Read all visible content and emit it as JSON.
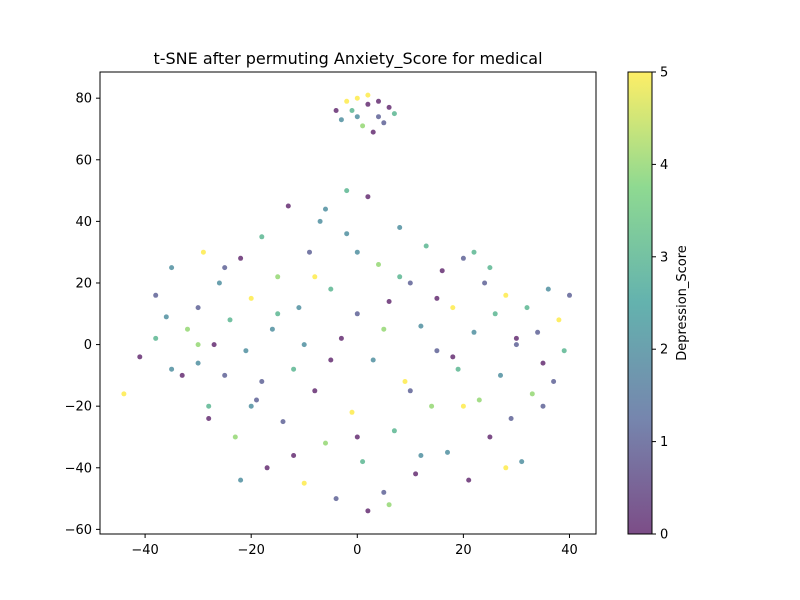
{
  "chart_data": {
    "type": "scatter",
    "title": "t-SNE after permuting Anxiety_Score for medical",
    "xlabel": "",
    "ylabel": "",
    "xlim": [
      -48.5,
      45
    ],
    "ylim": [
      -61.5,
      88.5
    ],
    "x_ticks": [
      -40,
      -20,
      0,
      20,
      40
    ],
    "y_ticks": [
      -60,
      -40,
      -20,
      0,
      20,
      40,
      60,
      80
    ],
    "grid": false,
    "colorbar": {
      "label": "Depression_Score",
      "colormap": "viridis",
      "range": [
        0,
        5
      ],
      "ticks": [
        0,
        1,
        2,
        3,
        4,
        5
      ]
    },
    "colors": {
      "viridis_stops": [
        "#440154",
        "#3b528b",
        "#21918c",
        "#5ec962",
        "#fde725"
      ]
    },
    "point_alpha": 0.7,
    "points": [
      {
        "x": 0,
        "y": 80,
        "c": 5
      },
      {
        "x": 2,
        "y": 78,
        "c": 0
      },
      {
        "x": -1,
        "y": 76,
        "c": 3
      },
      {
        "x": 4,
        "y": 74,
        "c": 1
      },
      {
        "x": 6,
        "y": 77,
        "c": 0
      },
      {
        "x": -3,
        "y": 73,
        "c": 2
      },
      {
        "x": 1,
        "y": 71,
        "c": 4
      },
      {
        "x": 3,
        "y": 69,
        "c": 0
      },
      {
        "x": -2,
        "y": 79,
        "c": 5
      },
      {
        "x": 5,
        "y": 72,
        "c": 1
      },
      {
        "x": 7,
        "y": 75,
        "c": 3
      },
      {
        "x": -4,
        "y": 76,
        "c": 0
      },
      {
        "x": 0,
        "y": 74,
        "c": 2
      },
      {
        "x": 2,
        "y": 81,
        "c": 5
      },
      {
        "x": 4,
        "y": 79,
        "c": 0
      },
      {
        "x": -44,
        "y": -16,
        "c": 5
      },
      {
        "x": -41,
        "y": -4,
        "c": 0
      },
      {
        "x": -38,
        "y": 2,
        "c": 3
      },
      {
        "x": -38,
        "y": 16,
        "c": 1
      },
      {
        "x": -36,
        "y": 9,
        "c": 2
      },
      {
        "x": -35,
        "y": 25,
        "c": 2
      },
      {
        "x": -33,
        "y": -10,
        "c": 0
      },
      {
        "x": -32,
        "y": 5,
        "c": 4
      },
      {
        "x": -30,
        "y": -6,
        "c": 2
      },
      {
        "x": -30,
        "y": 12,
        "c": 1
      },
      {
        "x": -29,
        "y": 30,
        "c": 5
      },
      {
        "x": -28,
        "y": -20,
        "c": 3
      },
      {
        "x": -27,
        "y": 0,
        "c": 0
      },
      {
        "x": -26,
        "y": 20,
        "c": 2
      },
      {
        "x": -25,
        "y": -10,
        "c": 1
      },
      {
        "x": -24,
        "y": 8,
        "c": 3
      },
      {
        "x": -23,
        "y": -30,
        "c": 4
      },
      {
        "x": -22,
        "y": 28,
        "c": 0
      },
      {
        "x": -21,
        "y": -2,
        "c": 2
      },
      {
        "x": -20,
        "y": 15,
        "c": 5
      },
      {
        "x": -19,
        "y": -18,
        "c": 1
      },
      {
        "x": -18,
        "y": 35,
        "c": 3
      },
      {
        "x": -17,
        "y": -40,
        "c": 0
      },
      {
        "x": -16,
        "y": 5,
        "c": 2
      },
      {
        "x": -15,
        "y": 22,
        "c": 4
      },
      {
        "x": -14,
        "y": -25,
        "c": 1
      },
      {
        "x": -13,
        "y": 45,
        "c": 0
      },
      {
        "x": -12,
        "y": -8,
        "c": 3
      },
      {
        "x": -11,
        "y": 12,
        "c": 2
      },
      {
        "x": -10,
        "y": -45,
        "c": 5
      },
      {
        "x": -9,
        "y": 30,
        "c": 1
      },
      {
        "x": -8,
        "y": -15,
        "c": 0
      },
      {
        "x": -7,
        "y": 40,
        "c": 2
      },
      {
        "x": -6,
        "y": -32,
        "c": 4
      },
      {
        "x": -5,
        "y": 18,
        "c": 3
      },
      {
        "x": -4,
        "y": -50,
        "c": 1
      },
      {
        "x": -3,
        "y": 2,
        "c": 0
      },
      {
        "x": -2,
        "y": 36,
        "c": 2
      },
      {
        "x": -1,
        "y": -22,
        "c": 5
      },
      {
        "x": 0,
        "y": 10,
        "c": 1
      },
      {
        "x": 1,
        "y": -38,
        "c": 3
      },
      {
        "x": 2,
        "y": 48,
        "c": 0
      },
      {
        "x": 3,
        "y": -5,
        "c": 2
      },
      {
        "x": 4,
        "y": 26,
        "c": 4
      },
      {
        "x": 5,
        "y": -48,
        "c": 1
      },
      {
        "x": 6,
        "y": 14,
        "c": 0
      },
      {
        "x": 7,
        "y": -28,
        "c": 3
      },
      {
        "x": 8,
        "y": 38,
        "c": 2
      },
      {
        "x": 9,
        "y": -12,
        "c": 5
      },
      {
        "x": 10,
        "y": 20,
        "c": 1
      },
      {
        "x": 11,
        "y": -42,
        "c": 0
      },
      {
        "x": 12,
        "y": 6,
        "c": 2
      },
      {
        "x": 13,
        "y": 32,
        "c": 3
      },
      {
        "x": 14,
        "y": -20,
        "c": 4
      },
      {
        "x": 15,
        "y": -2,
        "c": 1
      },
      {
        "x": 16,
        "y": 24,
        "c": 0
      },
      {
        "x": 17,
        "y": -35,
        "c": 2
      },
      {
        "x": 18,
        "y": 12,
        "c": 5
      },
      {
        "x": 19,
        "y": -8,
        "c": 3
      },
      {
        "x": 20,
        "y": 28,
        "c": 1
      },
      {
        "x": 21,
        "y": -44,
        "c": 0
      },
      {
        "x": 22,
        "y": 4,
        "c": 2
      },
      {
        "x": 23,
        "y": -18,
        "c": 4
      },
      {
        "x": 24,
        "y": 20,
        "c": 1
      },
      {
        "x": 25,
        "y": -30,
        "c": 0
      },
      {
        "x": 26,
        "y": 10,
        "c": 3
      },
      {
        "x": 27,
        "y": -10,
        "c": 2
      },
      {
        "x": 28,
        "y": 16,
        "c": 5
      },
      {
        "x": 29,
        "y": -24,
        "c": 1
      },
      {
        "x": 30,
        "y": 2,
        "c": 0
      },
      {
        "x": 31,
        "y": -38,
        "c": 2
      },
      {
        "x": 32,
        "y": 12,
        "c": 3
      },
      {
        "x": 33,
        "y": -16,
        "c": 4
      },
      {
        "x": 34,
        "y": 4,
        "c": 1
      },
      {
        "x": 35,
        "y": -6,
        "c": 0
      },
      {
        "x": 36,
        "y": 18,
        "c": 2
      },
      {
        "x": 37,
        "y": -12,
        "c": 1
      },
      {
        "x": 38,
        "y": 8,
        "c": 5
      },
      {
        "x": 39,
        "y": -2,
        "c": 3
      },
      {
        "x": 40,
        "y": 16,
        "c": 1
      },
      {
        "x": -10,
        "y": 0,
        "c": 2
      },
      {
        "x": -5,
        "y": -5,
        "c": 0
      },
      {
        "x": 5,
        "y": 5,
        "c": 4
      },
      {
        "x": 10,
        "y": -15,
        "c": 1
      },
      {
        "x": -15,
        "y": 10,
        "c": 3
      },
      {
        "x": 15,
        "y": 15,
        "c": 0
      },
      {
        "x": -20,
        "y": -20,
        "c": 2
      },
      {
        "x": 20,
        "y": -20,
        "c": 5
      },
      {
        "x": -25,
        "y": 25,
        "c": 1
      },
      {
        "x": 25,
        "y": 25,
        "c": 3
      },
      {
        "x": 0,
        "y": -30,
        "c": 0
      },
      {
        "x": 0,
        "y": 30,
        "c": 2
      },
      {
        "x": -30,
        "y": 0,
        "c": 4
      },
      {
        "x": 30,
        "y": 0,
        "c": 1
      },
      {
        "x": -12,
        "y": -36,
        "c": 0
      },
      {
        "x": 12,
        "y": -36,
        "c": 2
      },
      {
        "x": -8,
        "y": 22,
        "c": 5
      },
      {
        "x": 8,
        "y": 22,
        "c": 3
      },
      {
        "x": -18,
        "y": -12,
        "c": 1
      },
      {
        "x": 18,
        "y": -4,
        "c": 0
      },
      {
        "x": -6,
        "y": 44,
        "c": 2
      },
      {
        "x": 6,
        "y": -52,
        "c": 4
      },
      {
        "x": 2,
        "y": -54,
        "c": 0
      },
      {
        "x": -2,
        "y": 50,
        "c": 3
      },
      {
        "x": -35,
        "y": -8,
        "c": 2
      },
      {
        "x": 35,
        "y": -20,
        "c": 1
      },
      {
        "x": -28,
        "y": -24,
        "c": 0
      },
      {
        "x": 28,
        "y": -40,
        "c": 5
      },
      {
        "x": -22,
        "y": -44,
        "c": 2
      },
      {
        "x": 22,
        "y": 30,
        "c": 3
      }
    ]
  }
}
